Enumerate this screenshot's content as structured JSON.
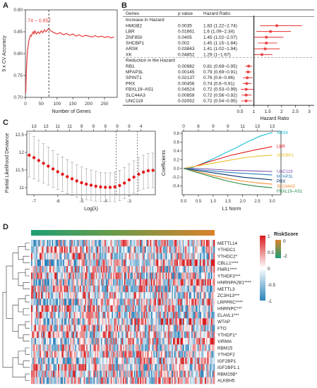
{
  "panels": {
    "a_label": "A",
    "b_label": "B",
    "c_label": "C",
    "d_label": "D"
  },
  "chart_data": [
    {
      "id": "A",
      "type": "line",
      "xlabel": "Number of Genes",
      "ylabel": "5 x CV Accuracy",
      "xlim": [
        0,
        290
      ],
      "ylim": [
        0.7,
        0.9
      ],
      "xticks": [
        0,
        50,
        100,
        150,
        200,
        250
      ],
      "yticks": [
        0.7,
        0.75,
        0.8,
        0.85,
        0.9
      ],
      "annotation": "74 – 0.857",
      "vline_x": 74,
      "color": "#e84545",
      "x": [
        1,
        3,
        5,
        7,
        9,
        11,
        13,
        15,
        17,
        19,
        21,
        23,
        25,
        27,
        30,
        35,
        40,
        45,
        50,
        55,
        60,
        65,
        70,
        74,
        80,
        90,
        100,
        110,
        120,
        130,
        140,
        150,
        160,
        170,
        180,
        190,
        200,
        210,
        220,
        230,
        240,
        250,
        260,
        270,
        280
      ],
      "y": [
        0.71,
        0.76,
        0.79,
        0.81,
        0.82,
        0.83,
        0.835,
        0.84,
        0.842,
        0.84,
        0.845,
        0.848,
        0.85,
        0.845,
        0.852,
        0.845,
        0.85,
        0.846,
        0.852,
        0.848,
        0.854,
        0.85,
        0.855,
        0.857,
        0.852,
        0.848,
        0.845,
        0.848,
        0.843,
        0.846,
        0.842,
        0.845,
        0.84,
        0.843,
        0.839,
        0.842,
        0.84,
        0.838,
        0.841,
        0.838,
        0.84,
        0.837,
        0.839,
        0.836,
        0.838
      ]
    },
    {
      "id": "B",
      "type": "forest",
      "columns": [
        "Genes",
        "p value",
        "Hazard Ratio"
      ],
      "group_increase": "Increase in Hazard",
      "group_reduction": "Reduction in the Hazard",
      "xlabel": "Hazard Ratio",
      "xlim": [
        0.5,
        3
      ],
      "xticks": [
        0.5,
        1,
        1.5,
        2,
        2.5,
        3
      ],
      "xtick_labels": [
        "0.5",
        "1",
        "1.5",
        "2",
        "2.5",
        "3"
      ],
      "color": "#e84545",
      "increase": [
        {
          "gene": "HMGB2",
          "p": "0.0035",
          "hr_text": "1.83 (1.22~2.74)",
          "hr": 1.83,
          "lo": 1.22,
          "hi": 2.74
        },
        {
          "gene": "LBR",
          "p": "0.01661",
          "hr_text": "1.6 (1.09~2.34)",
          "hr": 1.6,
          "lo": 1.09,
          "hi": 2.34
        },
        {
          "gene": "ZNF850",
          "p": "0.0405",
          "hr_text": "1.45 (1.02~2.07)",
          "hr": 1.45,
          "lo": 1.02,
          "hi": 2.07
        },
        {
          "gene": "SHCBP1",
          "p": "0.002",
          "hr_text": "1.45 (1.15~1.84)",
          "hr": 1.45,
          "lo": 1.15,
          "hi": 1.84
        },
        {
          "gene": "ARSK",
          "p": "0.03843",
          "hr_text": "1.41 (1.02~1.94)",
          "hr": 1.41,
          "lo": 1.02,
          "hi": 1.94
        },
        {
          "gene": "XK",
          "p": "0.04852",
          "hr_text": "1.29 (1~1.67)",
          "hr": 1.29,
          "lo": 1.0,
          "hi": 1.67
        }
      ],
      "reduction": [
        {
          "gene": "RB1",
          "p": "0.00982",
          "hr_text": "0.81 (0.69~0.95)",
          "hr": 0.81,
          "lo": 0.69,
          "hi": 0.95
        },
        {
          "gene": "MFAP3L",
          "p": "0.00145",
          "hr_text": "0.79 (0.69~0.91)",
          "hr": 0.79,
          "lo": 0.69,
          "hi": 0.91
        },
        {
          "gene": "SPINT1",
          "p": "0.02137",
          "hr_text": "0.76 (0.6~0.96)",
          "hr": 0.76,
          "lo": 0.6,
          "hi": 0.96
        },
        {
          "gene": "PRX",
          "p": "0.00456",
          "hr_text": "0.74 (0.6~0.91)",
          "hr": 0.74,
          "lo": 0.6,
          "hi": 0.91
        },
        {
          "gene": "FBXL19–AS1",
          "p": "0.04524",
          "hr_text": "0.72 (0.53~0.99)",
          "hr": 0.72,
          "lo": 0.53,
          "hi": 0.99
        },
        {
          "gene": "SLC44A3",
          "p": "0.00859",
          "hr_text": "0.72 (0.56~0.92)",
          "hr": 0.72,
          "lo": 0.56,
          "hi": 0.92
        },
        {
          "gene": "UNC119",
          "p": "0.02052",
          "hr_text": "0.72 (0.54~0.95)",
          "hr": 0.72,
          "lo": 0.54,
          "hi": 0.95
        }
      ]
    },
    {
      "id": "C-left",
      "type": "scatter",
      "xlabel": "Log(λ)",
      "ylabel": "Partial Likelihood Deviance",
      "xlim": [
        -7.3,
        -1.9
      ],
      "ylim": [
        10.8,
        12.6
      ],
      "xticks": [
        -7,
        -6,
        -5,
        -4,
        -3
      ],
      "yticks": [
        11.0,
        11.5,
        12.0,
        12.5
      ],
      "ytick_labels": [
        "11",
        "11.5",
        "12",
        "12.5"
      ],
      "top_ticks": [
        -7.0,
        -6.5,
        -6.0,
        -5.5,
        -5.0,
        -4.5,
        -4.0,
        -3.5,
        -3.0,
        -2.5
      ],
      "top_labels": [
        "13",
        "13",
        "11",
        "11",
        "9",
        "9",
        "9",
        "9",
        "9",
        "4"
      ],
      "vlines": [
        -3.55,
        -2.65
      ],
      "color": "#e31a1c",
      "x": [
        -7.2,
        -7.0,
        -6.8,
        -6.6,
        -6.4,
        -6.2,
        -6.0,
        -5.8,
        -5.6,
        -5.4,
        -5.2,
        -5.0,
        -4.8,
        -4.6,
        -4.4,
        -4.2,
        -4.0,
        -3.8,
        -3.6,
        -3.4,
        -3.2,
        -3.0,
        -2.8,
        -2.6,
        -2.4,
        -2.2,
        -2.0
      ],
      "y": [
        11.92,
        11.85,
        11.77,
        11.69,
        11.61,
        11.53,
        11.45,
        11.38,
        11.31,
        11.25,
        11.19,
        11.14,
        11.1,
        11.07,
        11.04,
        11.02,
        11.01,
        11.01,
        11.02,
        11.06,
        11.13,
        11.22,
        11.3,
        11.38,
        11.44,
        11.48,
        11.49
      ],
      "err": [
        0.62,
        0.6,
        0.58,
        0.56,
        0.54,
        0.52,
        0.5,
        0.49,
        0.48,
        0.47,
        0.46,
        0.45,
        0.44,
        0.43,
        0.42,
        0.41,
        0.41,
        0.41,
        0.42,
        0.43,
        0.44,
        0.45,
        0.46,
        0.47,
        0.48,
        0.49,
        0.49
      ]
    },
    {
      "id": "C-right",
      "type": "line",
      "xlabel": "L1 Norm",
      "ylabel": "Coefficients",
      "xlim": [
        -0.05,
        3.3
      ],
      "ylim": [
        -0.6,
        0.85
      ],
      "xticks": [
        0,
        0.5,
        1,
        1.5,
        2,
        2.5,
        3
      ],
      "xtick_labels": [
        "0.0",
        "0.5",
        "1.0",
        "1.5",
        "2.0",
        "2.5",
        "3.0"
      ],
      "yticks": [
        -0.4,
        -0.2,
        0,
        0.2,
        0.4,
        0.6,
        0.8
      ],
      "ytick_labels": [
        "-0.4",
        "-0.2",
        "0.0",
        "0.2",
        "0.4",
        "0.6",
        "0.8"
      ],
      "top_ticks": [
        0,
        0.5,
        1,
        1.5,
        2,
        2.5,
        3
      ],
      "top_labels": [
        "0",
        "8",
        "9",
        "9",
        "11",
        "13",
        "13"
      ],
      "series": [
        {
          "name": "ARSK",
          "color": "#1bc0d4",
          "x": [
            0,
            0.3,
            0.6,
            1.0,
            1.4,
            1.8,
            2.2,
            2.6,
            3.0
          ],
          "y": [
            0,
            0.02,
            0.1,
            0.22,
            0.35,
            0.48,
            0.62,
            0.74,
            0.82
          ]
        },
        {
          "name": "LBR",
          "color": "#e31a1c",
          "x": [
            0,
            0.4,
            0.8,
            1.2,
            1.6,
            2.0,
            2.4,
            2.8,
            3.0
          ],
          "y": [
            0,
            0.05,
            0.14,
            0.22,
            0.3,
            0.36,
            0.42,
            0.47,
            0.5
          ]
        },
        {
          "name": "SHCBP1",
          "color": "#e6c229",
          "x": [
            0,
            0.5,
            1.0,
            1.5,
            2.0,
            2.5,
            3.0
          ],
          "y": [
            0,
            0.06,
            0.12,
            0.18,
            0.24,
            0.28,
            0.3
          ]
        },
        {
          "name": "UNC119",
          "color": "#7b52a8",
          "x": [
            0,
            0.5,
            1.0,
            1.5,
            2.0,
            2.5,
            3.0
          ],
          "y": [
            0,
            0.0,
            -0.02,
            -0.04,
            -0.05,
            -0.06,
            -0.07
          ]
        },
        {
          "name": "MFAP3L",
          "color": "#2c7fb8",
          "x": [
            0,
            0.5,
            1.0,
            1.5,
            2.0,
            2.5,
            3.0
          ],
          "y": [
            0,
            -0.03,
            -0.06,
            -0.09,
            -0.11,
            -0.13,
            -0.15
          ]
        },
        {
          "name": "PRX",
          "color": "#08306b",
          "x": [
            0,
            0.5,
            1.0,
            1.5,
            2.0,
            2.5,
            3.0
          ],
          "y": [
            0,
            -0.05,
            -0.1,
            -0.15,
            -0.2,
            -0.23,
            -0.26
          ]
        },
        {
          "name": "SLC44A3",
          "color": "#f18c2d",
          "x": [
            0,
            0.5,
            1.0,
            1.5,
            2.0,
            2.5,
            3.0
          ],
          "y": [
            0,
            -0.08,
            -0.16,
            -0.23,
            -0.29,
            -0.33,
            -0.36
          ]
        },
        {
          "name": "FBXL19–AS1",
          "color": "#238b45",
          "x": [
            0,
            0.5,
            1.0,
            1.5,
            2.0,
            2.5,
            3.0
          ],
          "y": [
            0,
            -0.1,
            -0.2,
            -0.29,
            -0.36,
            -0.41,
            -0.44
          ]
        }
      ]
    },
    {
      "id": "D",
      "type": "heatmap",
      "genes": [
        "METTL14",
        "YTHDC1",
        "YTHDC2*",
        "CBLL1****",
        "FMR1****",
        "YTHDF3***",
        "HNRNPA2B1****",
        "METTL3",
        "ZC3H13***",
        "LRPPRC****",
        "HNRNPC***",
        "ELAVL1***",
        "WTAP",
        "FTO",
        "YTHDF1*",
        "VIRMA",
        "RBM15",
        "YTHDF2",
        "IGF2BP1",
        "IGF2BP1.1",
        "RBM15B*",
        "ALKBH5"
      ],
      "n_columns": 150,
      "legend_min": -1,
      "legend_max": 1,
      "legend_ticks": [
        "1",
        "0.5",
        "0",
        "-0.5",
        "-1"
      ],
      "risk_title": "RiskScore",
      "risk_ticks": [
        "0",
        "-2"
      ],
      "colors": {
        "high": "#d7191c",
        "mid": "#ffffff",
        "low": "#2b83ba",
        "risk_high": "#d9822b",
        "risk_low": "#1e9f74"
      }
    }
  ]
}
